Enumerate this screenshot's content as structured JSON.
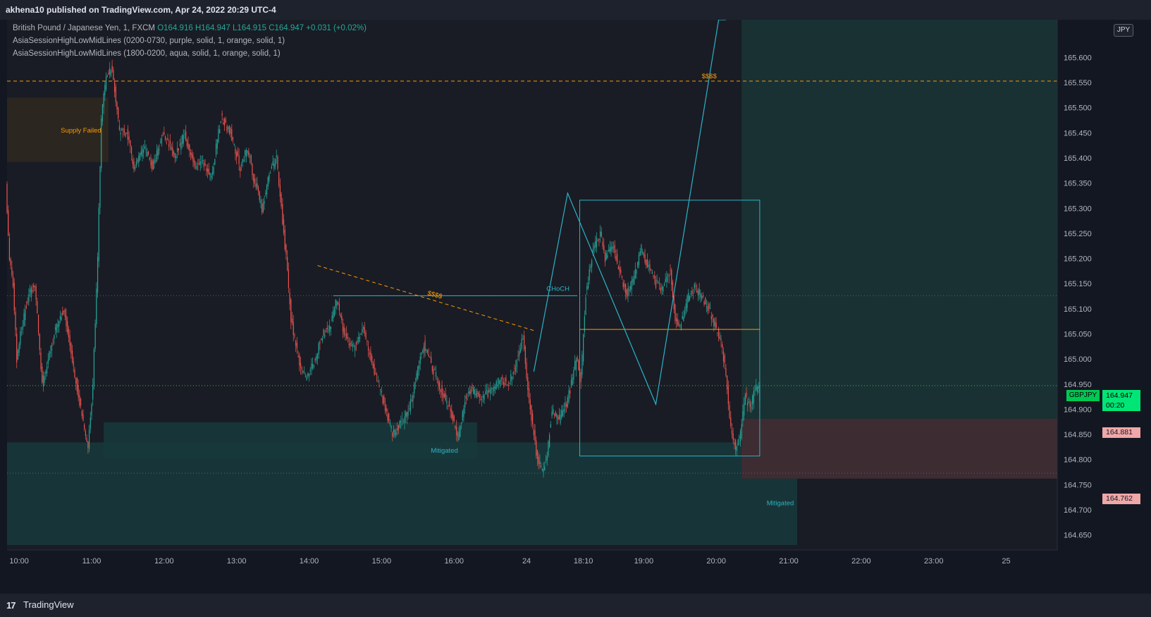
{
  "header": {
    "published_text": "akhena10 published on TradingView.com, Apr 24, 2022 20:29 UTC-4"
  },
  "legend": {
    "symbol": "British Pound / Japanese Yen, 1, FXCM",
    "open": "O164.916",
    "high": "H164.947",
    "low": "L164.915",
    "close": "C164.947",
    "change": "+0.031 (+0.02%)",
    "indicator1": "AsiaSessionHighLowMidLines (0200-0730, purple, solid, 1, orange, solid, 1)",
    "indicator2": "AsiaSessionHighLowMidLines (1800-0200, aqua, solid, 1, orange, solid, 1)"
  },
  "currency_button": "JPY",
  "ticker_tag": "GBPJPY",
  "last_price": {
    "price": "164.947",
    "countdown": "00:20"
  },
  "level_tags": [
    "164.881",
    "164.762"
  ],
  "footer": {
    "brand": "TradingView",
    "logo_glyph": "17"
  },
  "colors": {
    "background": "#131722",
    "up": "#26a69a",
    "down": "#ef5350",
    "teal_zone": "#1b3b3d",
    "supply_zone": "#2e2a22",
    "orange": "#ff9800",
    "aqua": "#2bb3c8",
    "last_price": "#00e676",
    "pink_zone": "#4a2e33"
  },
  "chart_data": {
    "type": "candlestick",
    "symbol": "GBPJPY",
    "interval": "1",
    "y_axis": {
      "range": [
        164.62,
        165.675
      ],
      "ticks": [
        "164.650",
        "164.700",
        "164.750",
        "164.800",
        "164.850",
        "164.900",
        "164.950",
        "165.000",
        "165.050",
        "165.100",
        "165.150",
        "165.200",
        "165.250",
        "165.300",
        "165.350",
        "165.400",
        "165.450",
        "165.500",
        "165.550",
        "165.600"
      ],
      "top_tick_label": "165.600"
    },
    "x_axis": {
      "ticks": [
        {
          "label": "10:00",
          "slot": 10
        },
        {
          "label": "11:00",
          "slot": 70
        },
        {
          "label": "12:00",
          "slot": 130
        },
        {
          "label": "13:00",
          "slot": 190
        },
        {
          "label": "14:00",
          "slot": 250
        },
        {
          "label": "15:00",
          "slot": 310
        },
        {
          "label": "16:00",
          "slot": 370
        },
        {
          "label": "24",
          "slot": 430
        },
        {
          "label": "18:10",
          "slot": 477
        },
        {
          "label": "19:00",
          "slot": 527
        },
        {
          "label": "20:00",
          "slot": 587
        },
        {
          "label": "21:00",
          "slot": 647
        },
        {
          "label": "22:00",
          "slot": 707
        },
        {
          "label": "23:00",
          "slot": 767
        },
        {
          "label": "25",
          "slot": 827
        }
      ]
    },
    "session_split_slot": 608,
    "last_candle_slot": 623,
    "path_anchors": [
      [
        0,
        165.35
      ],
      [
        3,
        165.2
      ],
      [
        6,
        165.15
      ],
      [
        9,
        165.0
      ],
      [
        12,
        165.05
      ],
      [
        18,
        165.12
      ],
      [
        24,
        165.15
      ],
      [
        30,
        164.95
      ],
      [
        40,
        165.05
      ],
      [
        48,
        165.1
      ],
      [
        55,
        165.0
      ],
      [
        62,
        164.9
      ],
      [
        68,
        164.82
      ],
      [
        72,
        164.95
      ],
      [
        76,
        165.2
      ],
      [
        79,
        165.48
      ],
      [
        83,
        165.56
      ],
      [
        88,
        165.58
      ],
      [
        94,
        165.45
      ],
      [
        100,
        165.45
      ],
      [
        106,
        165.38
      ],
      [
        114,
        165.42
      ],
      [
        122,
        165.38
      ],
      [
        130,
        165.45
      ],
      [
        140,
        165.4
      ],
      [
        148,
        165.45
      ],
      [
        156,
        165.38
      ],
      [
        162,
        165.4
      ],
      [
        170,
        165.36
      ],
      [
        178,
        165.48
      ],
      [
        186,
        165.45
      ],
      [
        194,
        165.38
      ],
      [
        200,
        165.42
      ],
      [
        206,
        165.35
      ],
      [
        212,
        165.3
      ],
      [
        218,
        165.37
      ],
      [
        224,
        165.4
      ],
      [
        228,
        165.3
      ],
      [
        232,
        165.2
      ],
      [
        236,
        165.08
      ],
      [
        242,
        165.0
      ],
      [
        248,
        164.96
      ],
      [
        256,
        165.0
      ],
      [
        262,
        165.05
      ],
      [
        268,
        165.06
      ],
      [
        274,
        165.12
      ],
      [
        280,
        165.05
      ],
      [
        288,
        165.02
      ],
      [
        296,
        165.06
      ],
      [
        302,
        165.0
      ],
      [
        308,
        164.95
      ],
      [
        314,
        164.9
      ],
      [
        320,
        164.85
      ],
      [
        326,
        164.87
      ],
      [
        334,
        164.9
      ],
      [
        340,
        164.97
      ],
      [
        346,
        165.03
      ],
      [
        352,
        164.99
      ],
      [
        360,
        164.94
      ],
      [
        368,
        164.9
      ],
      [
        374,
        164.84
      ],
      [
        380,
        164.92
      ],
      [
        386,
        164.94
      ],
      [
        394,
        164.92
      ],
      [
        402,
        164.94
      ],
      [
        410,
        164.96
      ],
      [
        416,
        164.95
      ],
      [
        422,
        164.99
      ],
      [
        428,
        165.04
      ],
      [
        434,
        164.9
      ],
      [
        440,
        164.8
      ],
      [
        444,
        164.78
      ],
      [
        448,
        164.81
      ],
      [
        452,
        164.9
      ],
      [
        458,
        164.88
      ],
      [
        464,
        164.91
      ],
      [
        468,
        164.95
      ],
      [
        472,
        165.0
      ],
      [
        476,
        164.96
      ],
      [
        480,
        165.13
      ],
      [
        486,
        165.22
      ],
      [
        492,
        165.25
      ],
      [
        496,
        165.2
      ],
      [
        502,
        165.23
      ],
      [
        508,
        165.17
      ],
      [
        514,
        165.13
      ],
      [
        520,
        165.16
      ],
      [
        526,
        165.22
      ],
      [
        532,
        165.18
      ],
      [
        538,
        165.15
      ],
      [
        544,
        165.14
      ],
      [
        550,
        165.18
      ],
      [
        554,
        165.08
      ],
      [
        558,
        165.06
      ],
      [
        564,
        165.12
      ],
      [
        570,
        165.14
      ],
      [
        576,
        165.12
      ],
      [
        582,
        165.1
      ],
      [
        588,
        165.06
      ],
      [
        592,
        165.03
      ],
      [
        596,
        164.97
      ],
      [
        600,
        164.86
      ],
      [
        604,
        164.82
      ],
      [
        608,
        164.85
      ],
      [
        612,
        164.93
      ],
      [
        616,
        164.9
      ],
      [
        620,
        164.94
      ],
      [
        623,
        164.947
      ]
    ],
    "horizontal_lines": [
      {
        "price": 165.553,
        "color": "orange",
        "style": "dashed",
        "label": "$$$$"
      },
      {
        "price": 165.126,
        "color": "gray",
        "style": "dotted"
      },
      {
        "price": 164.947,
        "color": "green",
        "style": "dotted"
      },
      {
        "price": 164.773,
        "color": "gray",
        "style": "dotted"
      }
    ],
    "zones": [
      {
        "name": "Supply Failed",
        "from_slot": 0,
        "to_slot": 84,
        "high": 165.52,
        "low": 165.392,
        "color": "supply"
      },
      {
        "name": "Mitigated",
        "from_slot": 80,
        "to_slot": 389,
        "high": 164.874,
        "low": 164.803,
        "color": "teal",
        "label_slot": 362
      },
      {
        "name": "Mitigated",
        "from_slot": 0,
        "to_slot": 654,
        "high": 164.834,
        "low": 164.63,
        "color": "teal",
        "label_slot": 640
      },
      {
        "name": "Future Session",
        "from_slot": 608,
        "to_slot": 872,
        "high": 165.675,
        "low": 164.762,
        "color": "teal_light"
      },
      {
        "name": "Pink Zone",
        "from_slot": 608,
        "to_slot": 872,
        "high": 164.881,
        "low": 164.762,
        "color": "pink"
      }
    ],
    "annotations": [
      {
        "type": "line",
        "text": "CHoCH",
        "from_slot": 270,
        "to_slot": 472,
        "price": 165.126
      },
      {
        "type": "dashed_trend",
        "text": "$$$$",
        "from": [
          257,
          165.186
        ],
        "to": [
          437,
          165.056
        ]
      },
      {
        "type": "rectangle",
        "from_slot": 474,
        "to_slot": 623,
        "high": 165.316,
        "low": 164.807
      },
      {
        "type": "orange_mid",
        "from_slot": 474,
        "to_slot": 623,
        "price": 165.059
      },
      {
        "type": "zigzag",
        "points": [
          [
            436,
            164.975
          ],
          [
            464,
            165.33
          ],
          [
            537,
            164.91
          ],
          [
            589,
            165.675
          ],
          [
            595,
            165.675
          ]
        ]
      }
    ]
  }
}
